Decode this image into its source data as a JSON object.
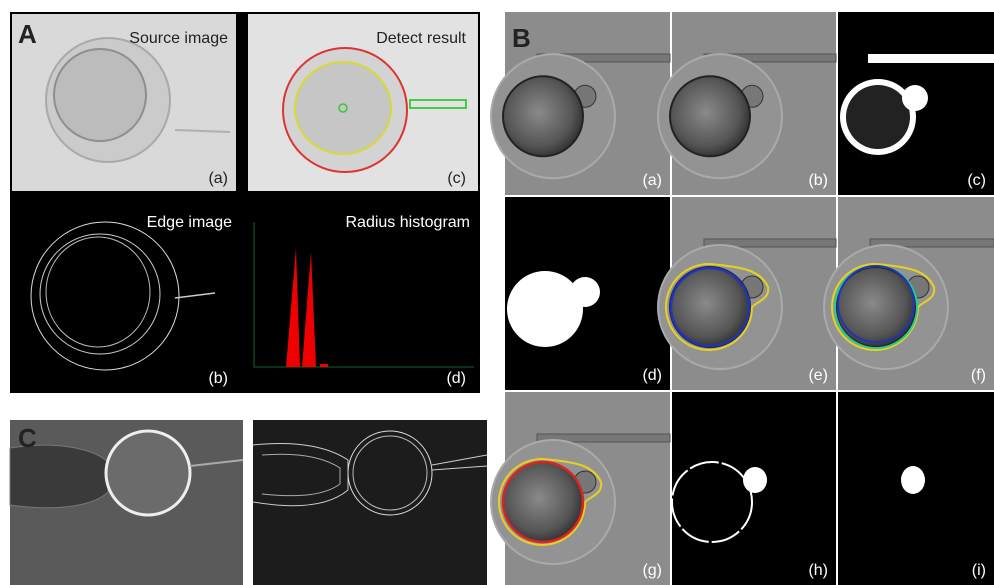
{
  "panels": [
    {
      "letter": "A",
      "images": [
        {
          "title": "Source image",
          "label": "(a)"
        },
        {
          "title": "Edge image",
          "label": "(b)"
        },
        {
          "title": "Detect result",
          "label": "(c)"
        },
        {
          "title": "Radius histogram",
          "label": "(d)"
        }
      ]
    },
    {
      "letter": "B",
      "images": [
        {
          "label": "(a)"
        },
        {
          "label": "(b)"
        },
        {
          "label": "(c)"
        },
        {
          "label": "(d)"
        },
        {
          "label": "(e)"
        },
        {
          "label": "(f)"
        },
        {
          "label": "(g)"
        },
        {
          "label": "(h)"
        },
        {
          "label": "(i)"
        }
      ]
    },
    {
      "letter": "C"
    }
  ]
}
